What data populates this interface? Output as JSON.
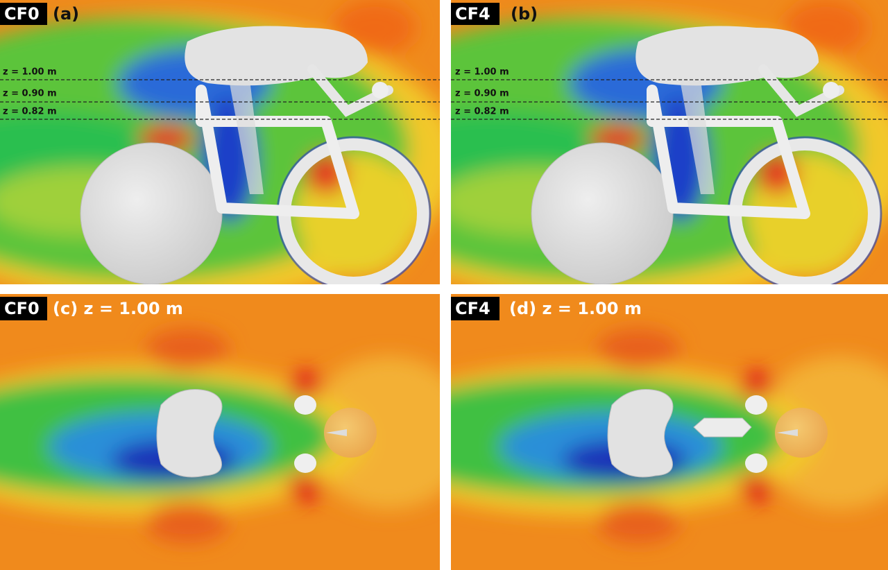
{
  "panels": [
    {
      "label": "CF0",
      "caption": "(a)",
      "z_lines": [
        "z = 1.00 m",
        "z = 0.90 m",
        "z = 0.82 m"
      ]
    },
    {
      "label": "CF4",
      "caption": "(b)",
      "z_lines": [
        "z = 1.00 m",
        "z = 0.90 m",
        "z = 0.82 m"
      ]
    },
    {
      "label": "CF0",
      "caption": "(c) z = 1.00 m"
    },
    {
      "label": "CF4",
      "caption": "(d) z = 1.00 m"
    }
  ]
}
